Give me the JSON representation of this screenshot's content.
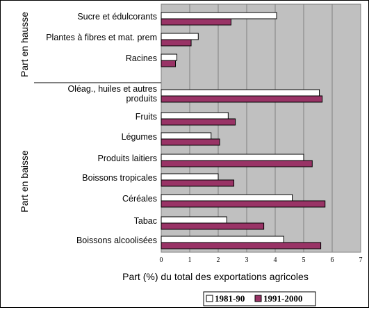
{
  "chart_data": {
    "type": "bar",
    "orientation": "horizontal",
    "xlabel": "Part (%) du total des exportations agricoles",
    "xlim": [
      0,
      7
    ],
    "x_ticks": [
      0,
      1,
      2,
      3,
      4,
      5,
      6,
      7
    ],
    "grid": true,
    "legend_position": "bottom-right",
    "groups": [
      {
        "label": "Part en hausse",
        "categories": [
          "Sucre et édulcorants",
          "Plantes à fibres et mat. prem",
          "Racines"
        ]
      },
      {
        "label": "Part en baisse",
        "categories": [
          "Oléag., huiles et autres produits",
          "Fruits",
          "Légumes",
          "Produits laitiers",
          "Boissons tropicales",
          "Céréales",
          "Tabac",
          "Boissons alcoolisées"
        ]
      }
    ],
    "category_display": [
      [
        "Sucre et édulcorants"
      ],
      [
        "Plantes à fibres et mat. prem"
      ],
      [
        "Racines"
      ],
      [
        "Oléag., huiles et autres",
        "produits"
      ],
      [
        "Fruits"
      ],
      [
        "Légumes"
      ],
      [
        "Produits laitiers"
      ],
      [
        "Boissons tropicales"
      ],
      [
        "Céréales"
      ],
      [
        "Tabac"
      ],
      [
        "Boissons alcoolisées"
      ]
    ],
    "series": [
      {
        "name": "1981-90",
        "color": "#ffffff",
        "values": [
          4.05,
          1.3,
          0.55,
          5.55,
          2.35,
          1.75,
          5.0,
          2.0,
          4.6,
          2.3,
          4.3
        ]
      },
      {
        "name": "1991-2000",
        "color": "#993366",
        "values": [
          2.45,
          1.05,
          0.5,
          5.65,
          2.6,
          2.05,
          5.3,
          2.55,
          5.75,
          3.6,
          5.6
        ]
      }
    ]
  }
}
